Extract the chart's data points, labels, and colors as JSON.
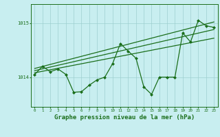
{
  "bg_color": "#c8eef0",
  "grid_color": "#9ecfcf",
  "line_color": "#1a6e1a",
  "marker_color": "#1a6e1a",
  "xlabel": "Graphe pression niveau de la mer (hPa)",
  "xlabel_fontsize": 6.5,
  "yticks": [
    1014,
    1015
  ],
  "xlim": [
    -0.5,
    23.5
  ],
  "ylim": [
    1013.45,
    1015.35
  ],
  "hours": [
    0,
    1,
    2,
    3,
    4,
    5,
    6,
    7,
    8,
    9,
    10,
    11,
    12,
    13,
    14,
    15,
    16,
    17,
    18,
    19,
    20,
    21,
    22,
    23
  ],
  "pressure": [
    1014.05,
    1014.2,
    1014.1,
    1014.15,
    1014.05,
    1013.72,
    1013.73,
    1013.85,
    1013.95,
    1014.0,
    1014.25,
    1014.62,
    1014.48,
    1014.35,
    1013.82,
    1013.68,
    1014.0,
    1014.0,
    1014.0,
    1014.82,
    1014.65,
    1015.05,
    1014.95,
    1014.92
  ],
  "trend1_x": [
    0,
    23
  ],
  "trend1_y": [
    1014.08,
    1014.72
  ],
  "trend2_x": [
    0,
    23
  ],
  "trend2_y": [
    1014.12,
    1014.88
  ],
  "trend3_x": [
    0,
    23
  ],
  "trend3_y": [
    1014.16,
    1015.02
  ]
}
